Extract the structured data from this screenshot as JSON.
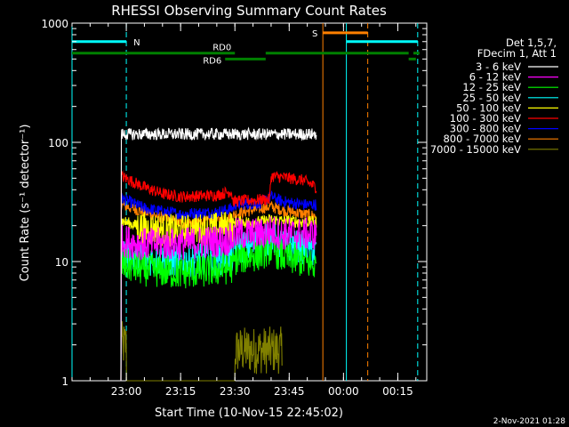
{
  "chart_data": {
    "type": "line",
    "title": "RHESSI Observing Summary Count Rates",
    "xlabel": "Start Time (10-Nov-15 22:45:02)",
    "ylabel": "Count Rate (s⁻¹ detector⁻¹)",
    "yscale": "log",
    "ylim": [
      1,
      1000
    ],
    "xlim_minutes": [
      0,
      98
    ],
    "y_ticks": [
      "1",
      "10",
      "100",
      "1000"
    ],
    "x_ticks": [
      {
        "minute": 15,
        "label": "23:00"
      },
      {
        "minute": 30,
        "label": "23:15"
      },
      {
        "minute": 45,
        "label": "23:30"
      },
      {
        "minute": 60,
        "label": "23:45"
      },
      {
        "minute": 75,
        "label": "00:00"
      },
      {
        "minute": 90,
        "label": "00:15"
      }
    ],
    "legend_header": [
      "Det 1,5,7,",
      "FDecim 1, Att 1"
    ],
    "series": [
      {
        "name": "3 - 6 keV",
        "color": "#ffffff",
        "points": [
          [
            13.5,
            1.0
          ],
          [
            13.6,
            117
          ],
          [
            40,
            117
          ],
          [
            56,
            117
          ],
          [
            67.5,
            117
          ],
          [
            67.6,
            1.0
          ]
        ]
      },
      {
        "name": "6 - 12 keV",
        "color": "#ff00ff",
        "points": [
          [
            13.5,
            1.0
          ],
          [
            13.6,
            15
          ],
          [
            20,
            14
          ],
          [
            30,
            14
          ],
          [
            42,
            15
          ],
          [
            44.5,
            15.5
          ],
          [
            45,
            17
          ],
          [
            52,
            17
          ],
          [
            55,
            18
          ],
          [
            58,
            17
          ],
          [
            64,
            17
          ],
          [
            67.5,
            17
          ],
          [
            67.6,
            1.0
          ]
        ]
      },
      {
        "name": "12 - 25 keV",
        "color": "#00ff00",
        "points": [
          [
            13.5,
            5
          ],
          [
            13.6,
            9.5
          ],
          [
            20,
            8.5
          ],
          [
            30,
            8
          ],
          [
            40,
            8.5
          ],
          [
            44.5,
            9
          ],
          [
            45,
            10.5
          ],
          [
            52,
            11.5
          ],
          [
            55,
            13
          ],
          [
            58,
            11
          ],
          [
            64,
            10
          ],
          [
            67.5,
            9
          ],
          [
            67.6,
            1.0
          ]
        ]
      },
      {
        "name": "25 - 50 keV",
        "color": "#00ffff",
        "points": [
          [
            13.5,
            1.0
          ],
          [
            13.6,
            12
          ],
          [
            20,
            10.5
          ],
          [
            30,
            10
          ],
          [
            40,
            10.5
          ],
          [
            44.5,
            11
          ],
          [
            45,
            13
          ],
          [
            52,
            14
          ],
          [
            55,
            16
          ],
          [
            58,
            14
          ],
          [
            64,
            13
          ],
          [
            67.5,
            12
          ],
          [
            67.6,
            1.0
          ]
        ]
      },
      {
        "name": "50 - 100 keV",
        "color": "#ffff00",
        "points": [
          [
            13.5,
            1.0
          ],
          [
            13.6,
            22
          ],
          [
            20,
            19
          ],
          [
            30,
            18
          ],
          [
            40,
            19
          ],
          [
            44.5,
            20
          ],
          [
            45,
            21.5
          ],
          [
            52,
            21.5
          ],
          [
            55,
            22.5
          ],
          [
            58,
            22
          ],
          [
            64,
            21.5
          ],
          [
            67.5,
            21.5
          ],
          [
            67.6,
            1.0
          ]
        ]
      },
      {
        "name": "100 - 300 keV",
        "color": "#ff0000",
        "points": [
          [
            13.5,
            1.0
          ],
          [
            13.6,
            52
          ],
          [
            20,
            42
          ],
          [
            25,
            37
          ],
          [
            30,
            35
          ],
          [
            40,
            36
          ],
          [
            44,
            39
          ],
          [
            44.5,
            32
          ],
          [
            52,
            33
          ],
          [
            54.6,
            33
          ],
          [
            55,
            52
          ],
          [
            58,
            51
          ],
          [
            64,
            48
          ],
          [
            67.5,
            42
          ],
          [
            67.6,
            1.0
          ]
        ]
      },
      {
        "name": "300 - 800 keV",
        "color": "#0000ff",
        "points": [
          [
            13.5,
            1.0
          ],
          [
            13.6,
            34
          ],
          [
            20,
            28
          ],
          [
            30,
            25
          ],
          [
            40,
            26
          ],
          [
            44.5,
            28
          ],
          [
            45,
            30
          ],
          [
            52,
            31
          ],
          [
            55,
            35
          ],
          [
            58,
            32
          ],
          [
            64,
            30
          ],
          [
            67.5,
            30
          ],
          [
            67.6,
            1.0
          ]
        ]
      },
      {
        "name": "800 - 7000 keV",
        "color": "#ff8000",
        "points": [
          [
            13.5,
            1.0
          ],
          [
            13.6,
            30
          ],
          [
            20,
            26
          ],
          [
            30,
            21
          ],
          [
            40,
            22
          ],
          [
            44.5,
            24
          ],
          [
            45,
            25
          ],
          [
            52,
            28
          ],
          [
            55,
            29
          ],
          [
            58,
            27
          ],
          [
            64,
            25
          ],
          [
            67.5,
            24
          ],
          [
            67.6,
            1.0
          ]
        ]
      },
      {
        "name": "7000 - 15000 keV",
        "color": "#808000",
        "points": [
          [
            13.5,
            2.0
          ],
          [
            15,
            2.0
          ],
          [
            15.1,
            1.0
          ],
          [
            45,
            1.0
          ],
          [
            45.1,
            1.8
          ],
          [
            58,
            1.8
          ],
          [
            58.1,
            1.0
          ]
        ]
      }
    ],
    "vertical_markers": [
      {
        "minute": 0,
        "color": "#00ffff",
        "style": "solid"
      },
      {
        "minute": 15,
        "color": "#00ffff",
        "style": "dashed"
      },
      {
        "minute": 69.3,
        "color": "#ff8000",
        "style": "solid"
      },
      {
        "minute": 75.8,
        "color": "#00ffff",
        "style": "solid"
      },
      {
        "minute": 81.7,
        "color": "#ff8000",
        "style": "dashed"
      },
      {
        "minute": 95.5,
        "color": "#00ffff",
        "style": "dashed"
      }
    ],
    "flag_bars": [
      {
        "label": "N",
        "color": "#00ffff",
        "level": "top",
        "start": 0,
        "end": 15
      },
      {
        "label": "",
        "color": "#00ffff",
        "level": "top",
        "start": 75.8,
        "end": 95.5
      },
      {
        "label": "S",
        "color": "#ff8000",
        "level": "upper",
        "start": 69.3,
        "end": 81.7
      },
      {
        "label": "RD0",
        "color": "#008000",
        "level": "mid",
        "start": 0,
        "end": 45
      },
      {
        "label": "",
        "color": "#008000",
        "level": "mid",
        "start": 53.5,
        "end": 93
      },
      {
        "label": "",
        "color": "#008000",
        "level": "mid",
        "start": 94.3,
        "end": 96
      },
      {
        "label": "RD6",
        "color": "#008000",
        "level": "low",
        "start": 42.3,
        "end": 53.5
      },
      {
        "label": "",
        "color": "#008000",
        "level": "low",
        "start": 93,
        "end": 95
      }
    ]
  },
  "footer_date": "2-Nov-2021 01:28"
}
